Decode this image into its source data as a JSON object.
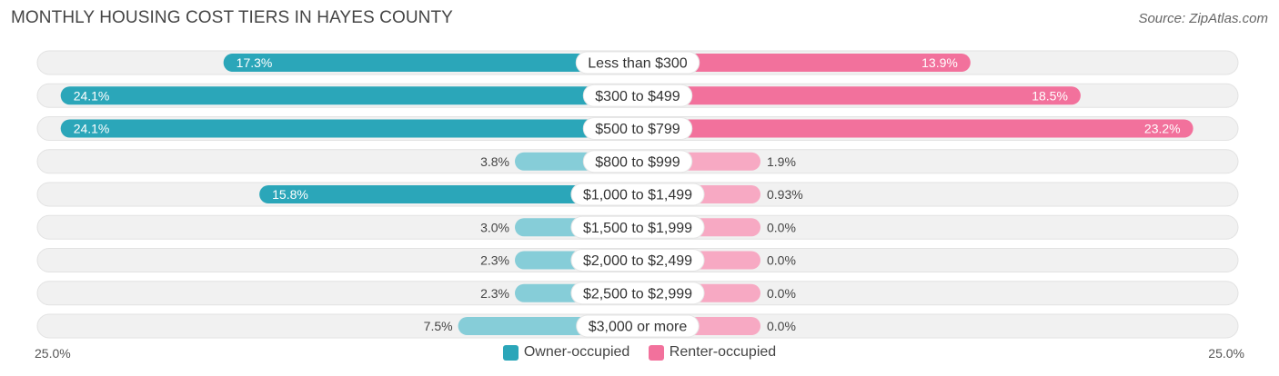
{
  "chart_data": {
    "type": "bar",
    "orientation": "diverging-horizontal",
    "title": "MONTHLY HOUSING COST TIERS IN HAYES COUNTY",
    "source": "Source: ZipAtlas.com",
    "categories": [
      "Less than $300",
      "$300 to $499",
      "$500 to $799",
      "$800 to $999",
      "$1,000 to $1,499",
      "$1,500 to $1,999",
      "$2,000 to $2,499",
      "$2,500 to $2,999",
      "$3,000 or more"
    ],
    "series": [
      {
        "name": "Owner-occupied",
        "values": [
          17.3,
          24.1,
          24.1,
          3.8,
          15.8,
          3.0,
          2.3,
          2.3,
          7.5
        ],
        "labels": [
          "17.3%",
          "24.1%",
          "24.1%",
          "3.8%",
          "15.8%",
          "3.0%",
          "2.3%",
          "2.3%",
          "7.5%"
        ],
        "color": "#2BA6B9",
        "color_light": "#86CDD8"
      },
      {
        "name": "Renter-occupied",
        "values": [
          13.9,
          18.5,
          23.2,
          1.9,
          0.93,
          0.0,
          0.0,
          0.0,
          0.0
        ],
        "labels": [
          "13.9%",
          "18.5%",
          "23.2%",
          "1.9%",
          "0.93%",
          "0.0%",
          "0.0%",
          "0.0%",
          "0.0%"
        ],
        "color": "#F2719C",
        "color_light": "#F7A9C3"
      }
    ],
    "axis_max": 25.0,
    "axis_left_label": "25.0%",
    "axis_right_label": "25.0%",
    "legend_position": "bottom-center"
  }
}
